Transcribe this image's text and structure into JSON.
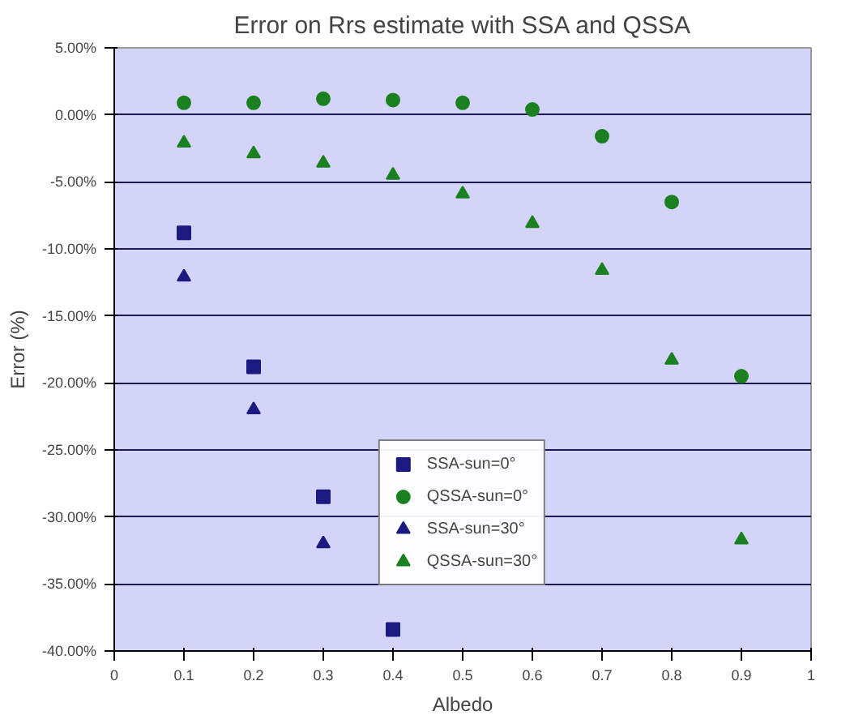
{
  "chart_data": {
    "type": "scatter",
    "title": "Error on Rrs estimate with SSA and QSSA",
    "xlabel": "Albedo",
    "ylabel": "Error (%)",
    "xlim": [
      0,
      1
    ],
    "xticks": [
      0,
      0.1,
      0.2,
      0.3,
      0.4,
      0.5,
      0.6,
      0.7,
      0.8,
      0.9,
      1
    ],
    "ylim": [
      -40,
      5
    ],
    "yticks": [
      {
        "value": 5,
        "label": "5.00%"
      },
      {
        "value": 0,
        "label": "0.00%"
      },
      {
        "value": -5,
        "label": "-5.00%"
      },
      {
        "value": -10,
        "label": "-10.00%"
      },
      {
        "value": -15,
        "label": "-15.00%"
      },
      {
        "value": -20,
        "label": "-20.00%"
      },
      {
        "value": -25,
        "label": "-25.00%"
      },
      {
        "value": -30,
        "label": "-30.00%"
      },
      {
        "value": -35,
        "label": "-35.00%"
      },
      {
        "value": -40,
        "label": "-40.00%"
      }
    ],
    "grid": "y",
    "legend": "bottom",
    "series": [
      {
        "name": "SSA-sun=0°",
        "color": "#1a1a80",
        "marker": "square",
        "x": [
          0.1,
          0.2,
          0.3,
          0.4
        ],
        "values": [
          -8.8,
          -18.8,
          -28.5,
          -38.4
        ]
      },
      {
        "name": "QSSA-sun=0°",
        "color": "#1a8020",
        "marker": "circle",
        "x": [
          0.1,
          0.2,
          0.3,
          0.4,
          0.5,
          0.6,
          0.7,
          0.8,
          0.9
        ],
        "values": [
          0.9,
          0.9,
          1.2,
          1.1,
          0.9,
          0.4,
          -1.6,
          -6.5,
          -19.5
        ]
      },
      {
        "name": "SSA-sun=30°",
        "color": "#1a1a80",
        "marker": "triangle",
        "x": [
          0.1,
          0.2,
          0.3
        ],
        "values": [
          -12.1,
          -22.0,
          -32.0
        ]
      },
      {
        "name": "QSSA-sun=30°",
        "color": "#1a8020",
        "marker": "triangle",
        "x": [
          0.1,
          0.2,
          0.3,
          0.4,
          0.5,
          0.6,
          0.7,
          0.8,
          0.9
        ],
        "values": [
          -2.1,
          -2.9,
          -3.6,
          -4.5,
          -5.9,
          -8.1,
          -11.6,
          -18.3,
          -31.7
        ]
      }
    ]
  }
}
